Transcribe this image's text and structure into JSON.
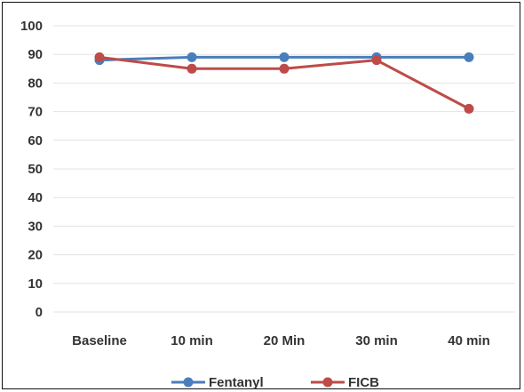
{
  "chart_data": {
    "type": "line",
    "categories": [
      "Baseline",
      "10 min",
      "20 Min",
      "30 min",
      "40 min"
    ],
    "series": [
      {
        "name": "Fentanyl",
        "values": [
          88,
          89,
          89,
          89,
          89
        ],
        "color": "#4a7ebb"
      },
      {
        "name": "FICB",
        "values": [
          89,
          85,
          85,
          88,
          71
        ],
        "color": "#be4b48"
      }
    ],
    "ylim": [
      0,
      100
    ],
    "yticks": [
      0,
      10,
      20,
      30,
      40,
      50,
      60,
      70,
      80,
      90,
      100
    ],
    "grid": true,
    "legend": "bottom",
    "title": "",
    "xlabel": "",
    "ylabel": ""
  }
}
